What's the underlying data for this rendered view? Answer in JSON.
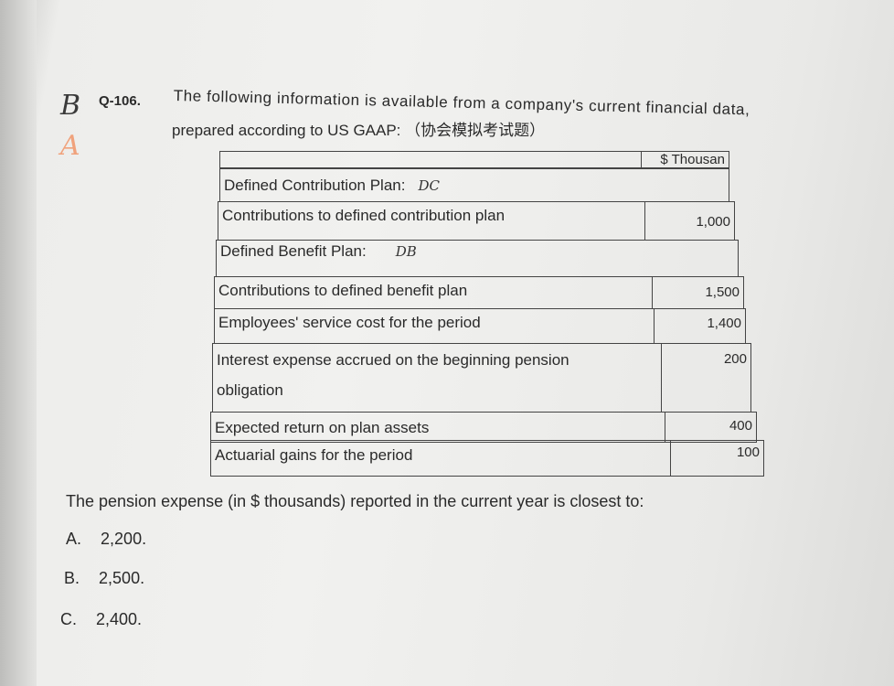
{
  "question": {
    "number": "Q-106.",
    "intro_line1": "The following information is available from a company's current financial data,",
    "intro_line2": "prepared according to US GAAP: （协会模拟考试题）",
    "handwritten_marks": [
      "B",
      "A"
    ],
    "prompt": "The pension expense (in $ thousands) reported in the current year is closest to:",
    "options": [
      {
        "letter": "A.",
        "text": "2,200."
      },
      {
        "letter": "B.",
        "text": "2,500."
      },
      {
        "letter": "C.",
        "text": "2,400."
      }
    ]
  },
  "table": {
    "unit_header": "$ Thousan",
    "dc_section": {
      "label": "Defined Contribution Plan:",
      "annotation": "DC"
    },
    "dc_contributions": {
      "label": "Contributions to defined contribution plan",
      "value": "1,000"
    },
    "db_section": {
      "label": "Defined Benefit Plan:",
      "annotation": "DB"
    },
    "rows": [
      {
        "label": "Contributions to defined benefit plan",
        "value": "1,500"
      },
      {
        "label": "Employees' service cost for the period",
        "value": "1,400"
      },
      {
        "label": "Interest expense accrued on the beginning pension",
        "label2": "obligation",
        "value": "200"
      },
      {
        "label": "Expected return on plan assets",
        "value": "400"
      },
      {
        "label": "Actuarial gains for the period",
        "value": "100"
      }
    ]
  }
}
